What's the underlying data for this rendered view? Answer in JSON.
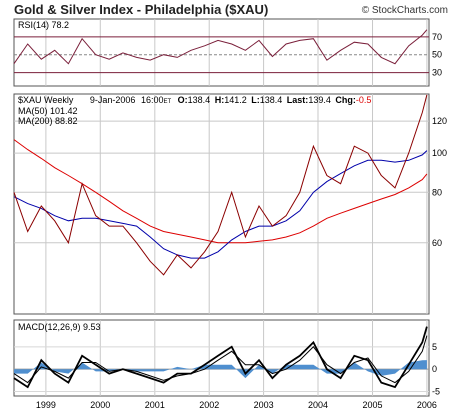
{
  "header": {
    "title": "Gold & Silver Index - Philadelphia ($XAU)",
    "copyright": "© StockCharts.com"
  },
  "chart_data": [
    {
      "type": "line",
      "panel": "rsi",
      "label": "RSI(14)",
      "last_value": "78.2",
      "y_ticks": [
        "70",
        "50",
        "30"
      ],
      "ylim": [
        15,
        90
      ],
      "reference_lines": [
        70,
        50,
        30
      ],
      "x_dates": [
        "1998-06",
        "1998-09",
        "1998-12",
        "1999-03",
        "1999-06",
        "1999-09",
        "1999-12",
        "2000-03",
        "2000-06",
        "2000-09",
        "2000-12",
        "2001-03",
        "2001-06",
        "2001-09",
        "2001-12",
        "2002-03",
        "2002-06",
        "2002-09",
        "2002-12",
        "2003-03",
        "2003-06",
        "2003-09",
        "2003-12",
        "2004-03",
        "2004-06",
        "2004-09",
        "2004-12",
        "2005-03",
        "2005-06",
        "2005-09",
        "2005-12",
        "2006-01"
      ],
      "values": [
        40,
        62,
        45,
        55,
        40,
        68,
        50,
        45,
        52,
        47,
        44,
        50,
        47,
        55,
        60,
        66,
        62,
        55,
        66,
        48,
        62,
        66,
        68,
        44,
        55,
        64,
        62,
        47,
        40,
        60,
        72,
        78
      ]
    },
    {
      "type": "line",
      "panel": "price",
      "label": "$XAU Weekly",
      "quote": {
        "date": "9-Jan-2006",
        "time": "16:00",
        "tz": "ET",
        "open_label": "O:",
        "open": "138.4",
        "high_label": "H:",
        "high": "141.2",
        "low_label": "L:",
        "low": "138.4",
        "last_label": "Last:",
        "last": "139.4",
        "change_label": "Chg:",
        "change": "-0.5"
      },
      "scale": "log",
      "ylim": [
        40,
        140
      ],
      "y_ticks": [
        "120",
        "100",
        "80",
        "60"
      ],
      "x_ticks": [
        "1999",
        "2000",
        "2001",
        "2002",
        "2003",
        "2004",
        "2005",
        "2006"
      ],
      "x_dates": [
        "1998-06",
        "1998-09",
        "1998-12",
        "1999-03",
        "1999-06",
        "1999-09",
        "1999-12",
        "2000-03",
        "2000-06",
        "2000-09",
        "2000-12",
        "2001-03",
        "2001-06",
        "2001-09",
        "2001-12",
        "2002-03",
        "2002-06",
        "2002-09",
        "2002-12",
        "2003-03",
        "2003-06",
        "2003-09",
        "2003-12",
        "2004-03",
        "2004-06",
        "2004-09",
        "2004-12",
        "2005-03",
        "2005-06",
        "2005-09",
        "2005-12",
        "2006-01"
      ],
      "series": [
        {
          "name": "$XAU Weekly",
          "color": "#8b0000",
          "values": [
            80,
            64,
            74,
            68,
            60,
            84,
            70,
            66,
            66,
            60,
            54,
            50,
            56,
            52,
            57,
            64,
            80,
            62,
            74,
            66,
            70,
            80,
            104,
            88,
            84,
            104,
            100,
            88,
            82,
            100,
            126,
            139.4
          ]
        },
        {
          "name": "MA(50)",
          "legend": "MA(50) 101.42",
          "color": "#0000aa",
          "values": [
            78,
            75,
            73,
            70,
            68,
            69,
            69,
            68,
            67,
            66,
            62,
            58,
            56,
            55,
            55,
            57,
            61,
            64,
            66,
            66,
            68,
            72,
            80,
            85,
            89,
            93,
            96,
            96,
            95,
            96,
            99,
            101.42
          ]
        },
        {
          "name": "MA(200)",
          "legend": "MA(200) 88.82",
          "color": "#dd0000",
          "values": [
            108,
            102,
            97,
            92,
            88,
            84,
            80,
            76,
            72,
            69,
            66,
            64,
            63,
            62,
            61,
            60,
            60,
            60,
            60.5,
            61,
            62,
            63.5,
            66,
            69,
            71,
            73,
            75,
            77,
            79,
            82,
            86,
            88.82
          ]
        }
      ]
    },
    {
      "type": "line",
      "panel": "macd",
      "label": "MACD(12,26,9)",
      "last_value": "9.53",
      "ylim": [
        -6,
        11
      ],
      "y_ticks": [
        "5",
        "0",
        "-5"
      ],
      "x_dates": [
        "1998-06",
        "1998-09",
        "1998-12",
        "1999-03",
        "1999-06",
        "1999-09",
        "1999-12",
        "2000-03",
        "2000-06",
        "2000-09",
        "2000-12",
        "2001-03",
        "2001-06",
        "2001-09",
        "2001-12",
        "2002-03",
        "2002-06",
        "2002-09",
        "2002-12",
        "2003-03",
        "2003-06",
        "2003-09",
        "2003-12",
        "2004-03",
        "2004-06",
        "2004-09",
        "2004-12",
        "2005-03",
        "2005-06",
        "2005-09",
        "2005-12",
        "2006-01"
      ],
      "series": [
        {
          "name": "MACD",
          "color": "#000000",
          "values": [
            -2,
            -4,
            2,
            -1,
            -3,
            3,
            1,
            -1,
            0,
            -1,
            -2,
            -3,
            -1,
            -1,
            1,
            3,
            5,
            -1,
            2,
            -2,
            1,
            3,
            6,
            0,
            -2,
            3,
            2,
            -3,
            -4,
            1,
            6,
            9.53
          ]
        },
        {
          "name": "Signal",
          "color": "#000000",
          "values": [
            -1,
            -3,
            0.5,
            -0.5,
            -2,
            1.5,
            1.5,
            -0.5,
            0,
            -0.5,
            -1.5,
            -2.5,
            -1.5,
            -1,
            0,
            2,
            4,
            1,
            1,
            -1,
            0,
            2,
            5,
            1,
            -1,
            1.5,
            2.5,
            -1.5,
            -3,
            -0.5,
            4,
            7.5
          ]
        }
      ],
      "histogram_color": "#4f8fcf"
    }
  ]
}
